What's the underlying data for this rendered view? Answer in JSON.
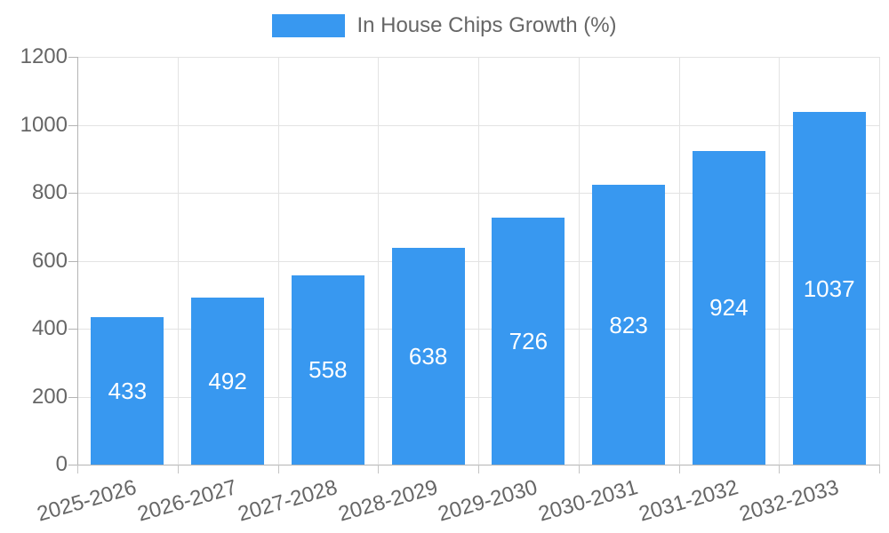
{
  "legend": {
    "label": "In House Chips Growth (%)",
    "swatch_color": "#3898f0"
  },
  "chart_data": {
    "type": "bar",
    "title": "In House Chips Growth (%)",
    "series_name": "In House Chips Growth (%)",
    "categories": [
      "2025-2026",
      "2026-2027",
      "2027-2028",
      "2028-2029",
      "2029-2030",
      "2030-2031",
      "2031-2032",
      "2032-2033"
    ],
    "values": [
      433,
      492,
      558,
      638,
      726,
      823,
      924,
      1037
    ],
    "value_labels": [
      "433",
      "492",
      "558",
      "638",
      "726",
      "823",
      "924",
      "1037"
    ],
    "xlabel": "",
    "ylabel": "",
    "ylim": [
      0,
      1200
    ],
    "yticks": [
      0,
      200,
      400,
      600,
      800,
      1000,
      1200
    ],
    "grid": true,
    "legend_position": "top",
    "bar_color": "#3898f0",
    "value_label_color": "#ffffff"
  },
  "colors": {
    "axis_text": "#666666",
    "grid_line": "#e3e3e3",
    "axis_line": "#b4b4b4"
  }
}
